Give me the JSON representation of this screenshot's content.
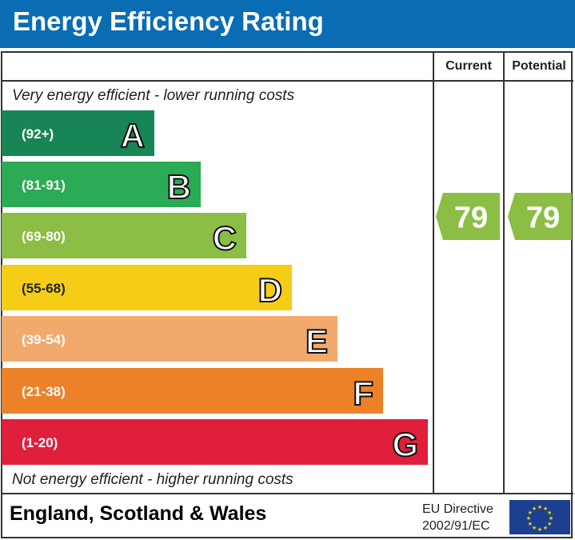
{
  "header": {
    "title": "Energy Efficiency Rating"
  },
  "columns": {
    "current": "Current",
    "potential": "Potential"
  },
  "captions": {
    "top": "Very energy efficient - lower running costs",
    "bottom": "Not energy efficient - higher running costs"
  },
  "footer": {
    "region": "England, Scotland & Wales",
    "directive_line1": "EU Directive",
    "directive_line2": "2002/91/EC",
    "flag_icon": "eu-flag-icon"
  },
  "chart_data": {
    "type": "bar",
    "categories": [
      "A",
      "B",
      "C",
      "D",
      "E",
      "F",
      "G"
    ],
    "ranges": [
      "(92+)",
      "(81-91)",
      "(69-80)",
      "(55-68)",
      "(39-54)",
      "(21-38)",
      "(1-20)"
    ],
    "colors": [
      "#178555",
      "#2bab55",
      "#8cbd44",
      "#f6cd16",
      "#f2a96c",
      "#ec8128",
      "#e01f3d"
    ],
    "current": {
      "value": 79,
      "band": "C",
      "color": "#8cbd44"
    },
    "potential": {
      "value": 79,
      "band": "C",
      "color": "#8cbd44"
    }
  }
}
